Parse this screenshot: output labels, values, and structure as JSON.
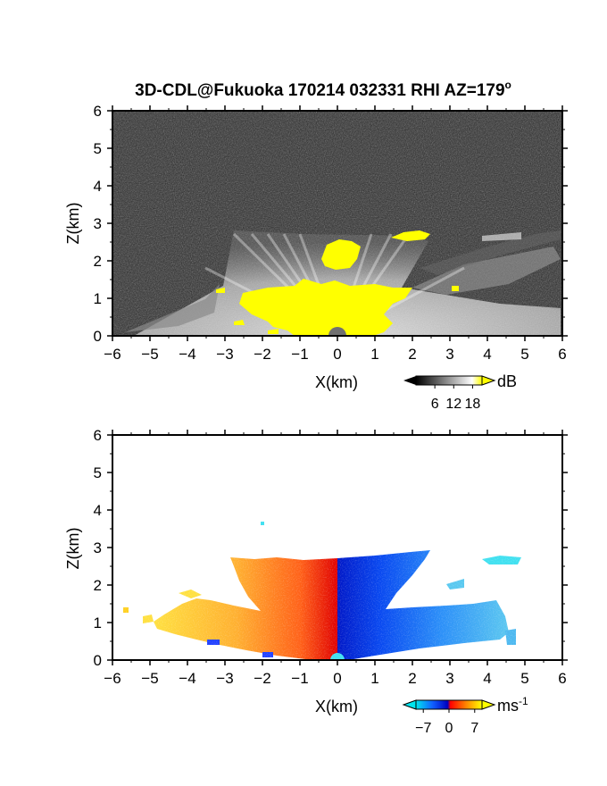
{
  "title": "3D-CDL@Fukuoka 170214 032331 RHI AZ=179",
  "title_superscript": "o",
  "chart_data": [
    {
      "type": "heatmap",
      "name": "reflectivity",
      "xlabel": "X(km)",
      "ylabel": "Z(km)",
      "xlim": [
        -6,
        6
      ],
      "ylim": [
        0,
        6
      ],
      "xticks": [
        "-6",
        "-5",
        "-4",
        "-3",
        "-2",
        "-1",
        "0",
        "1",
        "2",
        "3",
        "4",
        "5",
        "6"
      ],
      "yticks": [
        "0",
        "1",
        "2",
        "3",
        "4",
        "5",
        "6"
      ],
      "background": "noise (dark gray)",
      "colorbar": {
        "unit": "dB",
        "ticks": [
          "6",
          "12",
          "18"
        ],
        "range": [
          0,
          21
        ],
        "colors": [
          "#000000",
          "#ffffff",
          "#ffff00"
        ],
        "saturation_color": "#ffff00"
      }
    },
    {
      "type": "heatmap",
      "name": "doppler_velocity",
      "xlabel": "X(km)",
      "ylabel": "Z(km)",
      "xlim": [
        -6,
        6
      ],
      "ylim": [
        0,
        6
      ],
      "xticks": [
        "-6",
        "-5",
        "-4",
        "-3",
        "-2",
        "-1",
        "0",
        "1",
        "2",
        "3",
        "4",
        "5",
        "6"
      ],
      "yticks": [
        "0",
        "1",
        "2",
        "3",
        "4",
        "5",
        "6"
      ],
      "background": "white",
      "colorbar": {
        "unit": "ms",
        "unit_superscript": "-1",
        "ticks": [
          "-7",
          "0",
          "7"
        ],
        "range": [
          -9,
          9
        ],
        "colors": [
          "#00e5ee",
          "#1060ff",
          "#0000c0",
          "#ff0000",
          "#ff9000",
          "#ffff00"
        ]
      }
    }
  ]
}
